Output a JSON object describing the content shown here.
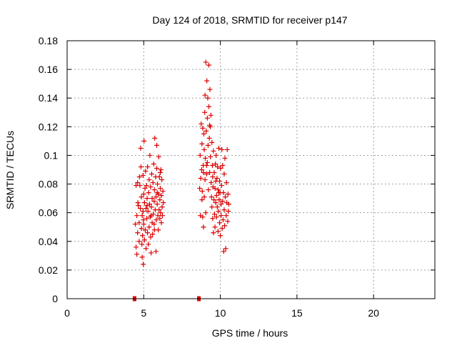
{
  "chart_data": {
    "type": "scatter",
    "title": "Day 124 of 2018, SRMTID for receiver p147",
    "xlabel": "GPS time / hours",
    "ylabel": "SRMTID / TECUs",
    "xlim": [
      0,
      24
    ],
    "ylim": [
      0,
      0.18
    ],
    "xticks": [
      0,
      5,
      10,
      15,
      20
    ],
    "xtick_labels": [
      "0",
      "5",
      "10",
      "15",
      "20"
    ],
    "yticks": [
      0,
      0.02,
      0.04,
      0.06,
      0.08,
      0.1,
      0.12,
      0.14,
      0.16,
      0.18
    ],
    "ytick_labels": [
      "0",
      "0.02",
      "0.04",
      "0.06",
      "0.08",
      "0.1",
      "0.12",
      "0.14",
      "0.16",
      "0.18"
    ],
    "grid": true,
    "series": [
      {
        "name": "SRMTID",
        "marker": "plus",
        "color": "#dd0000",
        "clusters": [
          {
            "x_range": [
              4.4,
              6.3
            ],
            "points": [
              [
                4.45,
                0.052
              ],
              [
                4.5,
                0.079
              ],
              [
                4.5,
                0.036
              ],
              [
                4.55,
                0.058
              ],
              [
                4.55,
                0.031
              ],
              [
                4.6,
                0.046
              ],
              [
                4.6,
                0.081
              ],
              [
                4.62,
                0.067
              ],
              [
                4.65,
                0.065
              ],
              [
                4.7,
                0.053
              ],
              [
                4.7,
                0.04
              ],
              [
                4.72,
                0.085
              ],
              [
                4.75,
                0.079
              ],
              [
                4.78,
                0.063
              ],
              [
                4.8,
                0.105
              ],
              [
                4.82,
                0.092
              ],
              [
                4.85,
                0.049
              ],
              [
                4.85,
                0.071
              ],
              [
                4.88,
                0.038
              ],
              [
                4.9,
                0.058
              ],
              [
                4.9,
                0.029
              ],
              [
                4.92,
                0.044
              ],
              [
                4.95,
                0.061
              ],
              [
                4.95,
                0.086
              ],
              [
                4.97,
                0.024
              ],
              [
                5.0,
                0.073
              ],
              [
                5.0,
                0.052
              ],
              [
                5.02,
                0.11
              ],
              [
                5.05,
                0.067
              ],
              [
                5.05,
                0.041
              ],
              [
                5.08,
                0.077
              ],
              [
                5.1,
                0.048
              ],
              [
                5.12,
                0.089
              ],
              [
                5.15,
                0.063
              ],
              [
                5.15,
                0.035
              ],
              [
                5.18,
                0.079
              ],
              [
                5.2,
                0.056
              ],
              [
                5.22,
                0.07
              ],
              [
                5.25,
                0.046
              ],
              [
                5.25,
                0.092
              ],
              [
                5.28,
                0.061
              ],
              [
                5.3,
                0.038
              ],
              [
                5.32,
                0.074
              ],
              [
                5.35,
                0.083
              ],
              [
                5.35,
                0.05
              ],
              [
                5.38,
                0.066
              ],
              [
                5.4,
                0.1
              ],
              [
                5.42,
                0.057
              ],
              [
                5.45,
                0.043
              ],
              [
                5.45,
                0.078
              ],
              [
                5.48,
                0.032
              ],
              [
                5.5,
                0.064
              ],
              [
                5.52,
                0.087
              ],
              [
                5.55,
                0.053
              ],
              [
                5.55,
                0.07
              ],
              [
                5.58,
                0.045
              ],
              [
                5.6,
                0.081
              ],
              [
                5.62,
                0.059
              ],
              [
                5.65,
                0.094
              ],
              [
                5.68,
                0.068
              ],
              [
                5.7,
                0.048
              ],
              [
                5.7,
                0.076
              ],
              [
                5.72,
                0.112
              ],
              [
                5.75,
                0.062
              ],
              [
                5.78,
                0.085
              ],
              [
                5.8,
                0.033
              ],
              [
                5.8,
                0.071
              ],
              [
                5.82,
                0.055
              ],
              [
                5.85,
                0.107
              ],
              [
                5.85,
                0.091
              ],
              [
                5.88,
                0.066
              ],
              [
                5.9,
                0.08
              ],
              [
                5.92,
                0.058
              ],
              [
                5.95,
                0.073
              ],
              [
                5.95,
                0.048
              ],
              [
                5.98,
                0.099
              ],
              [
                6.0,
                0.062
              ],
              [
                6.02,
                0.085
              ],
              [
                6.05,
                0.069
              ],
              [
                6.05,
                0.056
              ],
              [
                6.08,
                0.077
              ],
              [
                6.1,
                0.06
              ],
              [
                6.12,
                0.09
              ],
              [
                6.15,
                0.072
              ],
              [
                6.15,
                0.053
              ],
              [
                6.18,
                0.083
              ],
              [
                6.2,
                0.064
              ],
              [
                6.22,
                0.058
              ],
              [
                6.25,
                0.075
              ],
              [
                6.28,
                0.067
              ],
              [
                4.98,
                0.055
              ],
              [
                5.22,
                0.065
              ],
              [
                5.48,
                0.058
              ],
              [
                5.68,
                0.052
              ],
              [
                5.88,
                0.074
              ],
              [
                6.08,
                0.088
              ]
            ]
          },
          {
            "x_range": [
              8.6,
              10.6
            ],
            "points": [
              [
                8.65,
                0.077
              ],
              [
                8.68,
                0.1
              ],
              [
                8.7,
                0.058
              ],
              [
                8.72,
                0.084
              ],
              [
                8.75,
                0.122
              ],
              [
                8.78,
                0.09
              ],
              [
                8.8,
                0.069
              ],
              [
                8.8,
                0.108
              ],
              [
                8.82,
                0.075
              ],
              [
                8.85,
                0.119
              ],
              [
                8.85,
                0.057
              ],
              [
                8.88,
                0.093
              ],
              [
                8.9,
                0.088
              ],
              [
                8.9,
                0.05
              ],
              [
                8.92,
                0.115
              ],
              [
                8.95,
                0.071
              ],
              [
                8.95,
                0.104
              ],
              [
                8.98,
                0.13
              ],
              [
                9.0,
                0.083
              ],
              [
                9.0,
                0.142
              ],
              [
                9.02,
                0.098
              ],
              [
                9.05,
                0.06
              ],
              [
                9.05,
                0.165
              ],
              [
                9.08,
                0.117
              ],
              [
                9.1,
                0.087
              ],
              [
                9.12,
                0.152
              ],
              [
                9.15,
                0.126
              ],
              [
                9.15,
                0.095
              ],
              [
                9.18,
                0.14
              ],
              [
                9.2,
                0.107
              ],
              [
                9.22,
                0.076
              ],
              [
                9.25,
                0.163
              ],
              [
                9.25,
                0.134
              ],
              [
                9.28,
                0.112
              ],
              [
                9.3,
                0.088
              ],
              [
                9.32,
                0.146
              ],
              [
                9.35,
                0.12
              ],
              [
                9.35,
                0.099
              ],
              [
                9.38,
                0.128
              ],
              [
                9.4,
                0.081
              ],
              [
                9.42,
                0.071
              ],
              [
                9.45,
                0.109
              ],
              [
                9.45,
                0.064
              ],
              [
                9.48,
                0.093
              ],
              [
                9.5,
                0.056
              ],
              [
                9.52,
                0.078
              ],
              [
                9.55,
                0.103
              ],
              [
                9.55,
                0.046
              ],
              [
                9.58,
                0.069
              ],
              [
                9.6,
                0.088
              ],
              [
                9.62,
                0.059
              ],
              [
                9.65,
                0.077
              ],
              [
                9.65,
                0.05
              ],
              [
                9.68,
                0.094
              ],
              [
                9.7,
                0.067
              ],
              [
                9.72,
                0.1
              ],
              [
                9.75,
                0.072
              ],
              [
                9.75,
                0.057
              ],
              [
                9.78,
                0.084
              ],
              [
                9.8,
                0.064
              ],
              [
                9.82,
                0.092
              ],
              [
                9.85,
                0.076
              ],
              [
                9.85,
                0.047
              ],
              [
                9.88,
                0.061
              ],
              [
                9.9,
                0.105
              ],
              [
                9.92,
                0.069
              ],
              [
                9.95,
                0.082
              ],
              [
                9.95,
                0.053
              ],
              [
                9.98,
                0.074
              ],
              [
                10.0,
                0.044
              ],
              [
                10.02,
                0.091
              ],
              [
                10.05,
                0.066
              ],
              [
                10.05,
                0.058
              ],
              [
                10.08,
                0.079
              ],
              [
                10.1,
                0.104
              ],
              [
                10.12,
                0.049
              ],
              [
                10.15,
                0.068
              ],
              [
                10.15,
                0.093
              ],
              [
                10.18,
                0.055
              ],
              [
                10.2,
                0.074
              ],
              [
                10.22,
                0.033
              ],
              [
                10.25,
                0.062
              ],
              [
                10.25,
                0.087
              ],
              [
                10.28,
                0.051
              ],
              [
                10.3,
                0.098
              ],
              [
                10.32,
                0.071
              ],
              [
                10.35,
                0.035
              ],
              [
                10.38,
                0.058
              ],
              [
                10.4,
                0.081
              ],
              [
                10.42,
                0.067
              ],
              [
                10.45,
                0.104
              ],
              [
                10.48,
                0.054
              ],
              [
                10.5,
                0.073
              ],
              [
                10.52,
                0.061
              ],
              [
                10.55,
                0.066
              ],
              [
                9.1,
                0.093
              ],
              [
                9.3,
                0.121
              ],
              [
                9.5,
                0.085
              ],
              [
                9.7,
                0.082
              ],
              [
                9.9,
                0.074
              ]
            ]
          }
        ]
      }
    ],
    "baseline_markers": [
      {
        "x": 4.4,
        "y": 0,
        "shape": "square",
        "color": "#dd0000"
      },
      {
        "x": 8.6,
        "y": 0,
        "shape": "square",
        "color": "#dd0000"
      }
    ]
  }
}
